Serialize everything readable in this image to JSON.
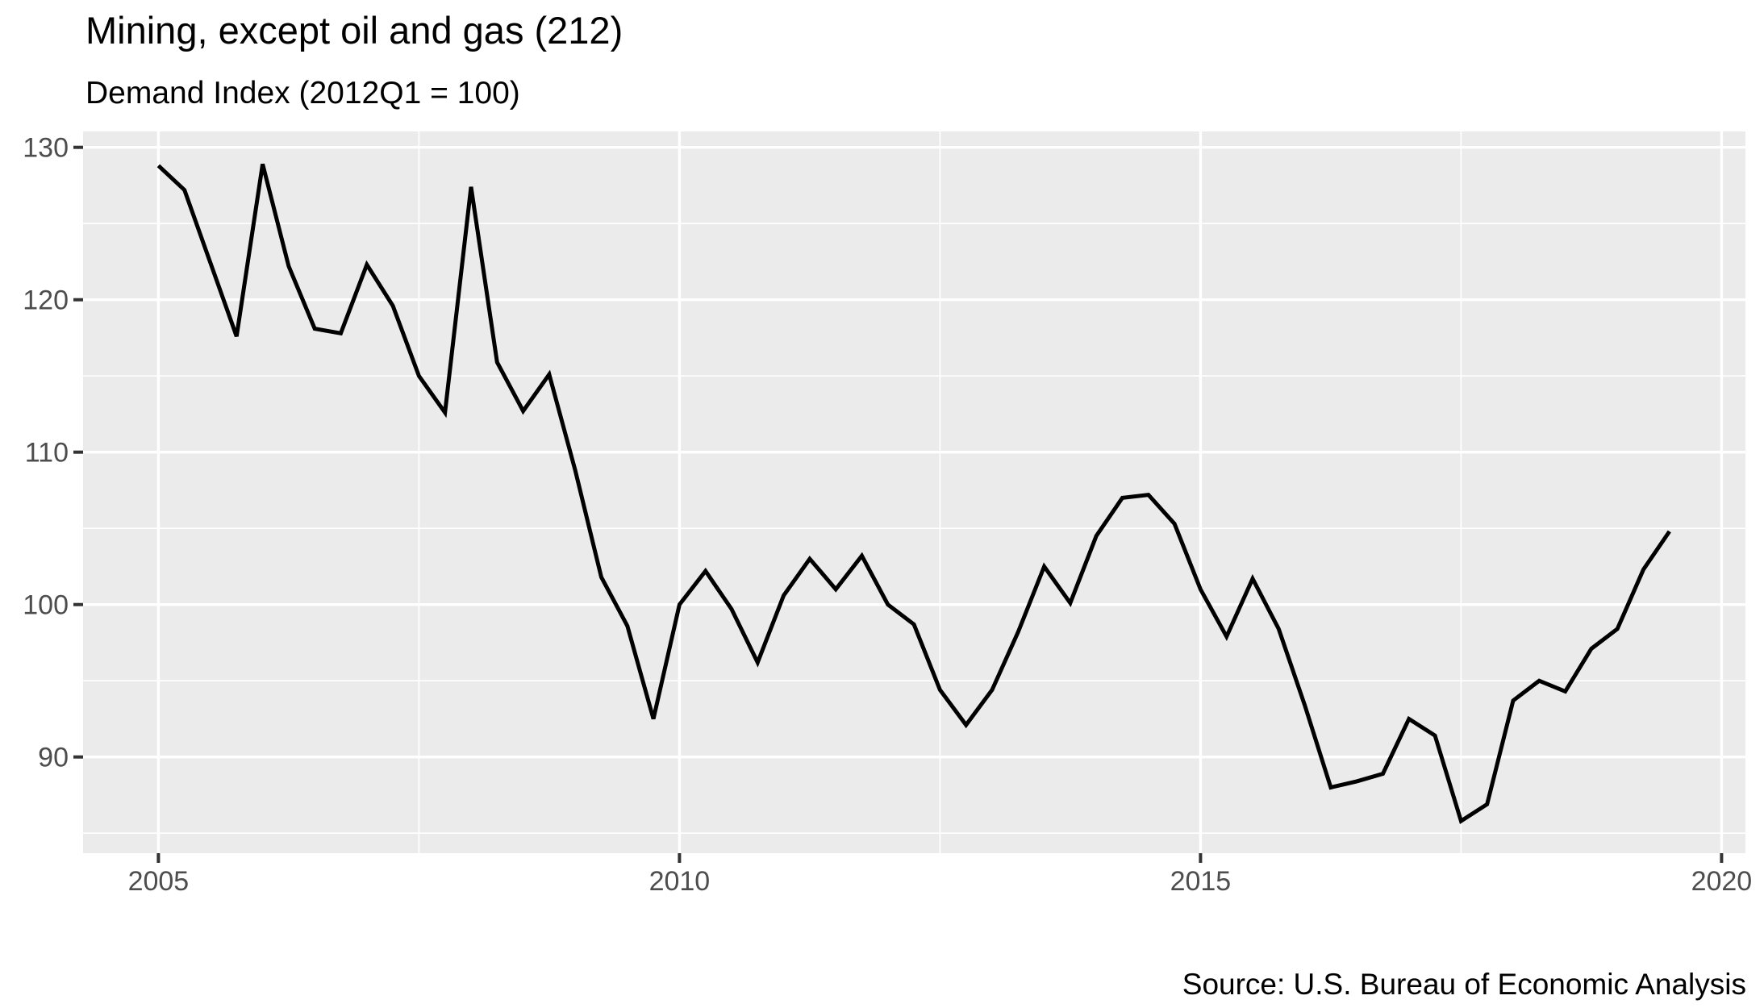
{
  "colors": {
    "background": "#FFFFFF",
    "panel_background": "#EBEBEB",
    "gridline": "#FFFFFF",
    "line": "#000000",
    "axis_text": "#4D4D4D",
    "tick_mark": "#333333",
    "title_text": "#000000"
  },
  "chart_data": {
    "type": "line",
    "title": "Mining, except oil and gas (212)",
    "subtitle": "Demand Index (2012Q1 = 100)",
    "caption": "Source: U.S. Bureau of Economic Analysis",
    "grid": true,
    "legend": false,
    "x_axis": {
      "tick_labels": [
        "2005",
        "2010",
        "2015",
        "2020"
      ],
      "tick_years": [
        2005,
        2010,
        2015,
        2020
      ],
      "minor_tick_years": [
        2007.5,
        2012.5,
        2017.5
      ],
      "range_years": [
        2004.28,
        2020.22
      ]
    },
    "y_axis": {
      "tick_labels": [
        "90",
        "100",
        "110",
        "120",
        "130"
      ],
      "ticks": [
        90,
        100,
        110,
        120,
        130
      ],
      "minor_ticks": [
        85,
        95,
        105,
        115,
        125
      ],
      "range": [
        83.7,
        131.1
      ]
    },
    "series": [
      {
        "name": "Demand Index",
        "frequency": "quarterly",
        "quarters": [
          "2005Q1",
          "2005Q2",
          "2005Q3",
          "2005Q4",
          "2006Q1",
          "2006Q2",
          "2006Q3",
          "2006Q4",
          "2007Q1",
          "2007Q2",
          "2007Q3",
          "2007Q4",
          "2008Q1",
          "2008Q2",
          "2008Q3",
          "2008Q4",
          "2009Q1",
          "2009Q2",
          "2009Q3",
          "2009Q4",
          "2010Q1",
          "2010Q2",
          "2010Q3",
          "2010Q4",
          "2011Q1",
          "2011Q2",
          "2011Q3",
          "2011Q4",
          "2012Q1",
          "2012Q2",
          "2012Q3",
          "2012Q4",
          "2013Q1",
          "2013Q2",
          "2013Q3",
          "2013Q4",
          "2014Q1",
          "2014Q2",
          "2014Q3",
          "2014Q4",
          "2015Q1",
          "2015Q2",
          "2015Q3",
          "2015Q4",
          "2016Q1",
          "2016Q2",
          "2016Q3",
          "2016Q4",
          "2017Q1",
          "2017Q2",
          "2017Q3",
          "2017Q4",
          "2018Q1",
          "2018Q2",
          "2018Q3",
          "2018Q4",
          "2019Q1",
          "2019Q2",
          "2019Q3"
        ],
        "values": [
          128.8,
          127.2,
          122.4,
          117.6,
          128.9,
          122.2,
          118.1,
          117.8,
          122.3,
          119.6,
          115.0,
          112.6,
          127.4,
          115.9,
          112.7,
          115.1,
          108.8,
          101.8,
          98.6,
          92.5,
          100.0,
          102.2,
          99.7,
          96.2,
          100.6,
          103.0,
          101.0,
          103.2,
          100.0,
          98.7,
          94.4,
          92.1,
          94.4,
          98.2,
          102.5,
          100.1,
          104.5,
          107.0,
          107.2,
          105.3,
          101.0,
          97.9,
          101.7,
          98.4,
          93.4,
          88.0,
          88.4,
          88.9,
          92.5,
          91.4,
          85.8,
          86.9,
          93.7,
          95.0,
          94.3,
          97.1,
          98.4,
          102.3,
          104.8
        ]
      }
    ]
  }
}
